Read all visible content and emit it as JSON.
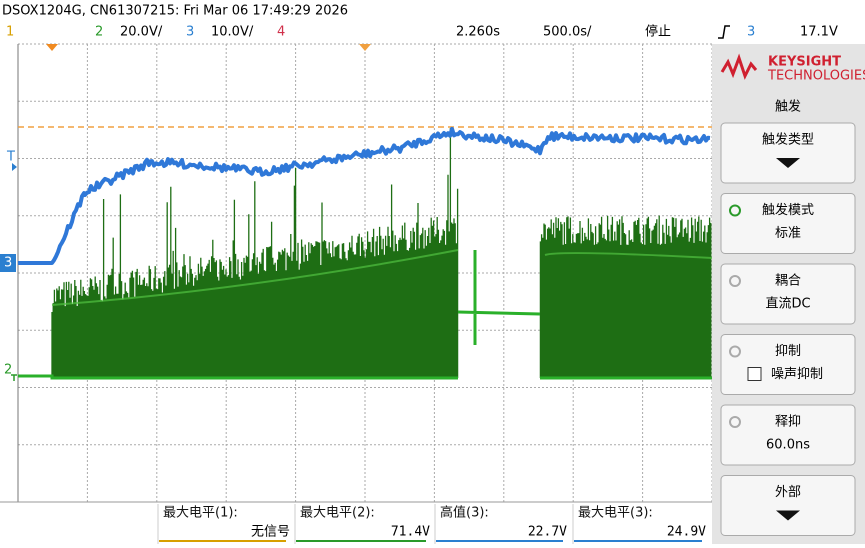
{
  "header": {
    "title": "DSOX1204G, CN61307215: Fri Mar 06 17:49:29 2026"
  },
  "status_bar": {
    "ch1": "1",
    "ch2": "2",
    "ch2_scale": "20.0V/",
    "ch3": "3",
    "ch3_scale": "10.0V/",
    "ch4": "4",
    "time_delay": "2.260s",
    "time_scale": "500.0s/",
    "run_state": "停止",
    "trigger_source": "3",
    "trigger_level": "17.1V"
  },
  "side_menu": {
    "brand": "KEYSIGHT",
    "brand_sub": "TECHNOLOGIES",
    "title": "触发",
    "items": [
      {
        "label": "触发类型"
      },
      {
        "label": "触发模式",
        "value": "标准"
      },
      {
        "label": "耦合",
        "value": "直流DC"
      },
      {
        "label": "抑制",
        "value": "噪声抑制"
      },
      {
        "label": "释抑",
        "value": "60.0ns"
      },
      {
        "label": "外部"
      }
    ]
  },
  "markers": {
    "trigger": "T",
    "ch3": "3",
    "ch2": "2"
  },
  "measurements": [
    {
      "label": "最大电平(1):",
      "value": "无信号"
    },
    {
      "label": "最大电平(2):",
      "value": "71.4V"
    },
    {
      "label": "高值(3):",
      "value": "22.7V"
    },
    {
      "label": "最大电平(3):",
      "value": "24.9V"
    }
  ]
}
